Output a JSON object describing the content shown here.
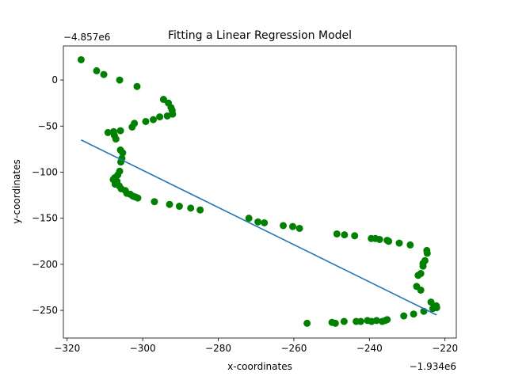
{
  "chart_data": {
    "type": "scatter",
    "title": "Fitting a Linear Regression Model",
    "xlabel": "x-coordinates",
    "ylabel": "y-coordinates",
    "x_offset_label": "−1.934e6",
    "y_offset_label": "−4.857e6",
    "xlim": [
      -321,
      -217
    ],
    "ylim": [
      -280,
      37
    ],
    "xticks": [
      -320,
      -300,
      -280,
      -260,
      -240,
      -220
    ],
    "xtick_labels": [
      "−320",
      "−300",
      "−280",
      "−260",
      "−240",
      "−220"
    ],
    "yticks": [
      0,
      -50,
      -100,
      -150,
      -200,
      -250
    ],
    "ytick_labels": [
      "0",
      "−50",
      "−100",
      "−150",
      "−200",
      "−250"
    ],
    "grid": false,
    "series": [
      {
        "name": "points",
        "kind": "scatter",
        "color": "#008000",
        "points": [
          [
            -316.3,
            22
          ],
          [
            -312.2,
            10
          ],
          [
            -310.3,
            6
          ],
          [
            -306.1,
            0
          ],
          [
            -301.5,
            -7
          ],
          [
            -294.5,
            -21
          ],
          [
            -293.2,
            -25
          ],
          [
            -292.5,
            -30
          ],
          [
            -292.2,
            -33
          ],
          [
            -292.1,
            -37
          ],
          [
            -293.5,
            -39
          ],
          [
            -295.5,
            -40
          ],
          [
            -297.2,
            -43
          ],
          [
            -299.2,
            -45
          ],
          [
            -302.2,
            -47
          ],
          [
            -302.8,
            -51
          ],
          [
            -305.9,
            -55
          ],
          [
            -307.7,
            -56
          ],
          [
            -309.2,
            -57
          ],
          [
            -307.5,
            -60
          ],
          [
            -307.1,
            -64
          ],
          [
            -305.9,
            -76
          ],
          [
            -305.3,
            -79
          ],
          [
            -305.5,
            -85
          ],
          [
            -305.8,
            -89
          ],
          [
            -306.1,
            -99
          ],
          [
            -306.6,
            -103
          ],
          [
            -307.4,
            -106
          ],
          [
            -307.8,
            -108
          ],
          [
            -306.8,
            -110
          ],
          [
            -307.3,
            -113
          ],
          [
            -306.2,
            -115
          ],
          [
            -305.7,
            -118
          ],
          [
            -304.6,
            -120
          ],
          [
            -304.2,
            -123
          ],
          [
            -303.3,
            -124
          ],
          [
            -302.6,
            -126
          ],
          [
            -301.3,
            -128
          ],
          [
            -301.9,
            -127
          ],
          [
            -296.9,
            -132
          ],
          [
            -292.9,
            -135
          ],
          [
            -290.3,
            -137
          ],
          [
            -287.3,
            -139
          ],
          [
            -284.8,
            -141
          ],
          [
            -271.9,
            -150
          ],
          [
            -269.5,
            -154
          ],
          [
            -267.8,
            -155
          ],
          [
            -262.8,
            -158
          ],
          [
            -260.3,
            -159
          ],
          [
            -258.5,
            -161
          ],
          [
            -248.6,
            -167
          ],
          [
            -246.6,
            -168
          ],
          [
            -243.9,
            -169
          ],
          [
            -239.5,
            -172
          ],
          [
            -238.4,
            -172
          ],
          [
            -237.3,
            -173
          ],
          [
            -235.3,
            -174
          ],
          [
            -234.9,
            -175
          ],
          [
            -232.1,
            -177
          ],
          [
            -229.2,
            -179
          ],
          [
            -224.8,
            -185
          ],
          [
            -224.7,
            -188
          ],
          [
            -225.3,
            -196
          ],
          [
            -225.8,
            -199
          ],
          [
            -225.8,
            -202
          ],
          [
            -226.4,
            -210
          ],
          [
            -227.1,
            -212
          ],
          [
            -227.5,
            -224
          ],
          [
            -226.4,
            -228
          ],
          [
            -223.7,
            -241
          ],
          [
            -222.3,
            -245
          ],
          [
            -223.2,
            -248
          ],
          [
            -222.2,
            -247
          ],
          [
            -225.6,
            -251
          ],
          [
            -228.3,
            -254
          ],
          [
            -230.9,
            -256
          ],
          [
            -235.3,
            -260
          ],
          [
            -235.8,
            -261
          ],
          [
            -236.6,
            -262
          ],
          [
            -238.1,
            -261
          ],
          [
            -239.4,
            -262
          ],
          [
            -240.5,
            -261
          ],
          [
            -242.3,
            -262
          ],
          [
            -243.5,
            -262
          ],
          [
            -246.7,
            -262
          ],
          [
            -249.0,
            -264
          ],
          [
            -249.9,
            -263
          ],
          [
            -256.5,
            -264
          ]
        ]
      },
      {
        "name": "regression line",
        "kind": "line",
        "color": "#1f77b4",
        "points": [
          [
            -316.3,
            -65
          ],
          [
            -222.2,
            -255
          ]
        ]
      }
    ]
  }
}
